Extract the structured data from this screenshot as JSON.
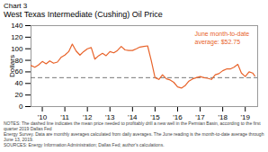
{
  "chart_data": {
    "type": "line",
    "subtitle": "Chart 3",
    "title": "West Texas Intermediate (Cushing) Oil Price",
    "ylabel": "Dollars",
    "color": "#e8632a",
    "grid": false,
    "x": [
      2009.5,
      2009.67,
      2009.83,
      2010.0,
      2010.17,
      2010.33,
      2010.5,
      2010.67,
      2010.83,
      2011.0,
      2011.17,
      2011.33,
      2011.5,
      2011.67,
      2011.83,
      2012.0,
      2012.17,
      2012.33,
      2012.5,
      2012.67,
      2012.83,
      2013.0,
      2013.17,
      2013.33,
      2013.5,
      2013.67,
      2013.83,
      2014.0,
      2014.17,
      2014.33,
      2014.5,
      2014.67,
      2014.83,
      2015.0,
      2015.17,
      2015.33,
      2015.5,
      2015.67,
      2015.83,
      2016.0,
      2016.17,
      2016.33,
      2016.5,
      2016.67,
      2016.83,
      2017.0,
      2017.17,
      2017.33,
      2017.5,
      2017.67,
      2017.83,
      2018.0,
      2018.17,
      2018.33,
      2018.5,
      2018.67,
      2018.83,
      2019.0,
      2019.17,
      2019.33,
      2019.42
    ],
    "values": [
      71,
      68,
      72,
      78,
      74,
      79,
      75,
      77,
      85,
      89,
      95,
      108,
      96,
      89,
      95,
      100,
      102,
      82,
      88,
      92,
      88,
      95,
      93,
      97,
      104,
      98,
      97,
      97,
      100,
      103,
      104,
      105,
      80,
      50,
      47,
      55,
      48,
      46,
      42,
      34,
      32,
      36,
      44,
      48,
      50,
      52,
      50,
      49,
      47,
      55,
      57,
      62,
      65,
      65,
      68,
      73,
      58,
      52,
      60,
      58,
      53
    ],
    "xlim": [
      2009.5,
      2019.55
    ],
    "xticks": [
      {
        "value": 2010,
        "label": "'10"
      },
      {
        "value": 2011,
        "label": "'11"
      },
      {
        "value": 2012,
        "label": "'12"
      },
      {
        "value": 2013,
        "label": "'13"
      },
      {
        "value": 2014,
        "label": "'14"
      },
      {
        "value": 2015,
        "label": "'15"
      },
      {
        "value": 2016,
        "label": "'16"
      },
      {
        "value": 2017,
        "label": "'17"
      },
      {
        "value": 2018,
        "label": "'18"
      },
      {
        "value": 2019,
        "label": "'19"
      }
    ],
    "ylim": [
      0,
      140
    ],
    "yticks": [
      0,
      20,
      40,
      60,
      80,
      100,
      120,
      140
    ],
    "reference_line": {
      "value": 50,
      "color": "#555555",
      "line_style": "dashed"
    },
    "annotations": [
      {
        "text": "June month-to-date\naverage: $52.75",
        "color": "#e8632a"
      }
    ],
    "footnote": "NOTES: The dashed line indicates the mean price needed to profitably drill a new well in the Permian Basin, according to the first quarter 2019 Dallas Fed\nEnergy Survey. Data are monthly averages calculated from daily averages. The June reading is the month-to-date average through June 13, 2019.\nSOURCES: Energy Information Administration; Dallas Fed; author's calculations."
  }
}
